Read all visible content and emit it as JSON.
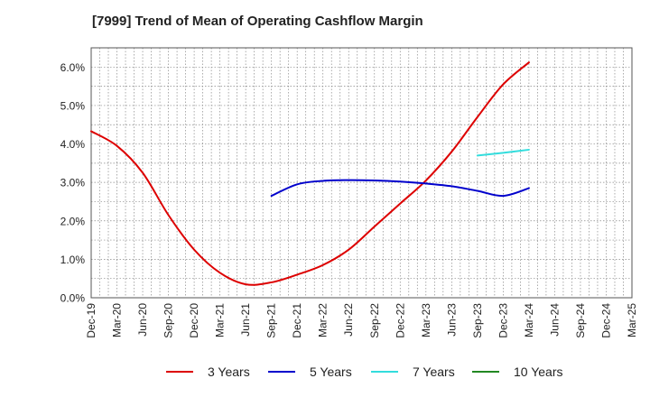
{
  "chart_data": {
    "type": "line",
    "title": "[7999]  Trend of Mean of Operating Cashflow Margin",
    "xlabel": "",
    "ylabel": "",
    "x_ticks": [
      "Dec-19",
      "Mar-20",
      "Jun-20",
      "Sep-20",
      "Dec-20",
      "Mar-21",
      "Jun-21",
      "Sep-21",
      "Dec-21",
      "Mar-22",
      "Jun-22",
      "Sep-22",
      "Dec-22",
      "Mar-23",
      "Jun-23",
      "Sep-23",
      "Dec-23",
      "Mar-24",
      "Jun-24",
      "Sep-24",
      "Dec-24",
      "Mar-25"
    ],
    "y_ticks": [
      "0.0%",
      "1.0%",
      "2.0%",
      "3.0%",
      "4.0%",
      "5.0%",
      "6.0%"
    ],
    "ylim": [
      0,
      6.5
    ],
    "grid": true,
    "legend_position": "bottom",
    "series": [
      {
        "name": "3 Years",
        "color": "#dd0000",
        "points": [
          [
            "Dec-19",
            4.33
          ],
          [
            "Mar-20",
            3.95
          ],
          [
            "Jun-20",
            3.25
          ],
          [
            "Sep-20",
            2.15
          ],
          [
            "Dec-20",
            1.25
          ],
          [
            "Mar-21",
            0.65
          ],
          [
            "Jun-21",
            0.35
          ],
          [
            "Sep-21",
            0.4
          ],
          [
            "Dec-21",
            0.6
          ],
          [
            "Mar-22",
            0.85
          ],
          [
            "Jun-22",
            1.25
          ],
          [
            "Sep-22",
            1.85
          ],
          [
            "Dec-22",
            2.45
          ],
          [
            "Mar-23",
            3.05
          ],
          [
            "Jun-23",
            3.8
          ],
          [
            "Sep-23",
            4.7
          ],
          [
            "Dec-23",
            5.55
          ],
          [
            "Mar-24",
            6.12
          ]
        ]
      },
      {
        "name": "5 Years",
        "color": "#0000cc",
        "points": [
          [
            "Sep-21",
            2.65
          ],
          [
            "Dec-21",
            2.95
          ],
          [
            "Mar-22",
            3.04
          ],
          [
            "Jun-22",
            3.06
          ],
          [
            "Sep-22",
            3.05
          ],
          [
            "Dec-22",
            3.02
          ],
          [
            "Mar-23",
            2.97
          ],
          [
            "Jun-23",
            2.9
          ],
          [
            "Sep-23",
            2.78
          ],
          [
            "Dec-23",
            2.65
          ],
          [
            "Mar-24",
            2.85
          ]
        ]
      },
      {
        "name": "7 Years",
        "color": "#33dddd",
        "points": [
          [
            "Sep-23",
            3.7
          ],
          [
            "Dec-23",
            3.77
          ],
          [
            "Mar-24",
            3.85
          ]
        ]
      },
      {
        "name": "10 Years",
        "color": "#228822",
        "points": []
      }
    ]
  }
}
